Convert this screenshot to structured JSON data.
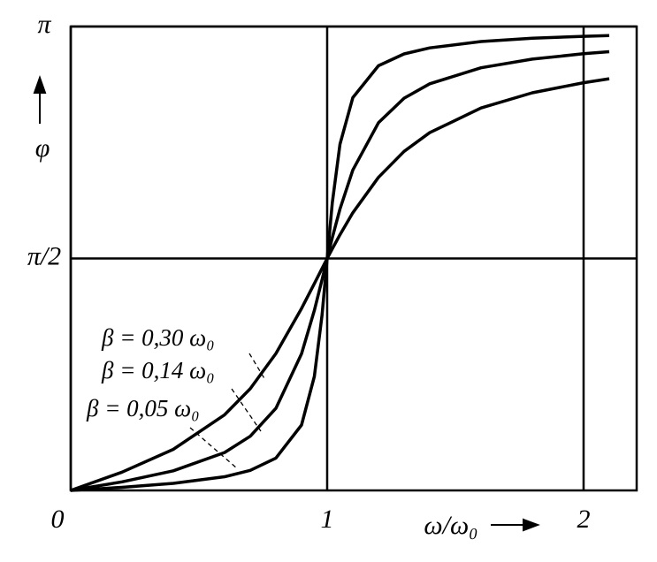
{
  "chart_data": {
    "type": "line",
    "y_label": "φ",
    "x_label": "ω/ω₀",
    "x": [
      0,
      0.2,
      0.4,
      0.6,
      0.7,
      0.8,
      0.9,
      0.95,
      0.98,
      1,
      1.02,
      1.05,
      1.1,
      1.2,
      1.3,
      1.4,
      1.6,
      1.8,
      2.0,
      2.1
    ],
    "series": [
      {
        "name": "β = 0,30 ω₀",
        "color": "#000000",
        "values": [
          0,
          0.124,
          0.278,
          0.512,
          0.689,
          0.927,
          1.232,
          1.401,
          1.503,
          1.571,
          1.636,
          1.732,
          1.88,
          2.12,
          2.296,
          2.423,
          2.59,
          2.693,
          2.761,
          2.788
        ]
      },
      {
        "name": "β = 0,14 ω₀",
        "color": "#000000",
        "values": [
          0,
          0.058,
          0.133,
          0.257,
          0.367,
          0.556,
          0.925,
          1.219,
          1.427,
          1.571,
          1.712,
          1.906,
          2.17,
          2.49,
          2.656,
          2.754,
          2.862,
          2.921,
          2.957,
          2.971
        ]
      },
      {
        "name": "β = 0,05 ω₀",
        "color": "#000000",
        "values": [
          0,
          0.021,
          0.048,
          0.093,
          0.136,
          0.219,
          0.443,
          0.772,
          1.187,
          1.571,
          1.948,
          2.345,
          2.66,
          2.876,
          2.956,
          2.997,
          3.04,
          3.062,
          3.075,
          3.08
        ]
      }
    ],
    "xlim": [
      0,
      2.207
    ],
    "xticks": [
      0,
      1,
      2
    ],
    "ylim": [
      0,
      3.1416
    ],
    "yticks": [
      {
        "value": 1.5708,
        "label": "π/2"
      },
      {
        "value": 3.1416,
        "label": "π"
      }
    ],
    "grid": true
  }
}
